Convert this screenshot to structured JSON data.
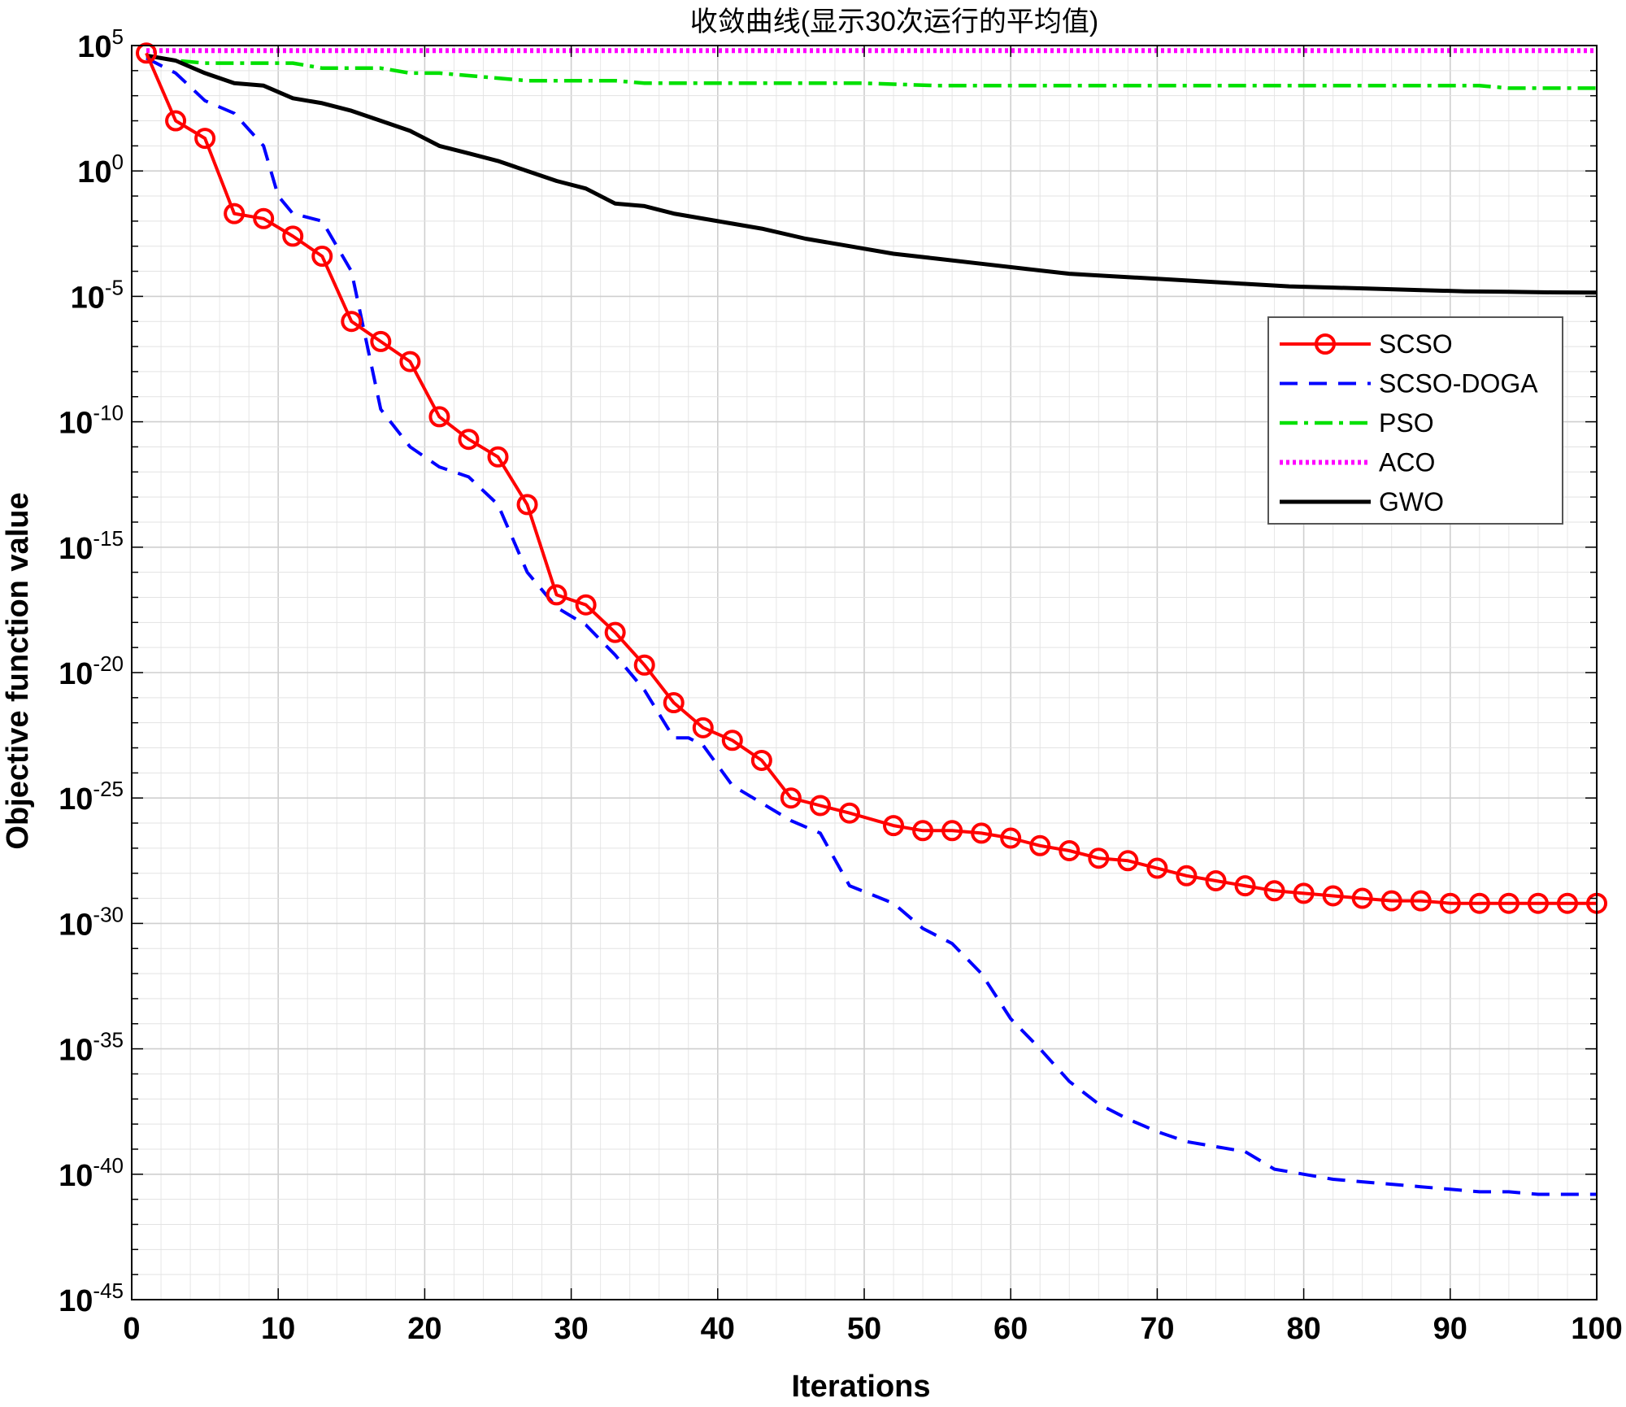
{
  "chart_data": {
    "type": "line",
    "title": "收敛曲线(显示30次运行的平均值)",
    "xlabel": "Iterations",
    "ylabel": "Objective function value",
    "xlim": [
      0,
      100
    ],
    "ylim_exponent": [
      -45,
      5
    ],
    "yscale": "log",
    "grid": true,
    "legend_position": "upper-right",
    "x_ticks": [
      "0",
      "10",
      "20",
      "30",
      "40",
      "50",
      "60",
      "70",
      "80",
      "90",
      "100"
    ],
    "y_tick_base": "10",
    "y_tick_exponents": [
      "5",
      "0",
      "-5",
      "-10",
      "-15",
      "-20",
      "-25",
      "-30",
      "-35",
      "-40",
      "-45"
    ],
    "series": [
      {
        "name": "SCSO",
        "color": "#ff0000",
        "style": "solid-circle",
        "x": [
          1,
          3,
          5,
          7,
          9,
          11,
          13,
          15,
          17,
          19,
          21,
          23,
          25,
          27,
          29,
          31,
          33,
          35,
          37,
          39,
          41,
          43,
          45,
          47,
          49,
          52,
          54,
          56,
          58,
          60,
          62,
          64,
          66,
          68,
          70,
          72,
          74,
          76,
          78,
          80,
          82,
          84,
          86,
          88,
          90,
          92,
          94,
          96,
          98,
          100
        ],
        "log10_y": [
          4.7,
          2.0,
          1.3,
          -1.7,
          -1.9,
          -2.6,
          -3.4,
          -6.0,
          -6.8,
          -7.6,
          -9.8,
          -10.7,
          -11.4,
          -13.3,
          -16.9,
          -17.3,
          -18.4,
          -19.7,
          -21.2,
          -22.2,
          -22.7,
          -23.5,
          -25.0,
          -25.3,
          -25.6,
          -26.1,
          -26.3,
          -26.3,
          -26.4,
          -26.6,
          -26.9,
          -27.1,
          -27.4,
          -27.5,
          -27.8,
          -28.1,
          -28.3,
          -28.5,
          -28.7,
          -28.8,
          -28.9,
          -29.0,
          -29.1,
          -29.1,
          -29.2,
          -29.2,
          -29.2,
          -29.2,
          -29.2,
          -29.2
        ]
      },
      {
        "name": "SCSO-DOGA",
        "color": "#0000ff",
        "style": "dashed",
        "x": [
          1,
          3,
          5,
          7,
          9,
          10,
          11,
          13,
          15,
          17,
          19,
          21,
          23,
          25,
          27,
          29,
          31,
          33,
          35,
          37,
          38,
          39,
          41,
          43,
          45,
          47,
          49,
          52,
          54,
          56,
          58,
          60,
          62,
          64,
          66,
          68,
          70,
          72,
          74,
          76,
          78,
          80,
          82,
          84,
          86,
          88,
          90,
          92,
          94,
          96,
          98,
          100
        ],
        "log10_y": [
          4.5,
          3.9,
          2.8,
          2.3,
          1.0,
          -1.0,
          -1.7,
          -2.0,
          -4.0,
          -9.5,
          -11.0,
          -11.8,
          -12.2,
          -13.3,
          -16.0,
          -17.4,
          -18.1,
          -19.3,
          -20.7,
          -22.6,
          -22.6,
          -22.9,
          -24.5,
          -25.2,
          -25.9,
          -26.4,
          -28.5,
          -29.2,
          -30.2,
          -30.8,
          -32.0,
          -33.8,
          -35.0,
          -36.3,
          -37.2,
          -37.8,
          -38.3,
          -38.7,
          -38.9,
          -39.1,
          -39.8,
          -40.0,
          -40.2,
          -40.3,
          -40.4,
          -40.5,
          -40.6,
          -40.7,
          -40.7,
          -40.8,
          -40.8,
          -40.8
        ]
      },
      {
        "name": "PSO",
        "color": "#00e000",
        "style": "dashdot",
        "x": [
          1,
          3,
          5,
          7,
          9,
          11,
          13,
          15,
          17,
          19,
          21,
          23,
          25,
          27,
          29,
          31,
          33,
          35,
          37,
          39,
          41,
          43,
          45,
          50,
          55,
          60,
          65,
          70,
          75,
          80,
          85,
          90,
          92,
          94,
          96,
          98,
          100
        ],
        "log10_y": [
          4.6,
          4.4,
          4.3,
          4.3,
          4.3,
          4.3,
          4.1,
          4.1,
          4.1,
          3.9,
          3.9,
          3.8,
          3.7,
          3.6,
          3.6,
          3.6,
          3.6,
          3.5,
          3.5,
          3.5,
          3.5,
          3.5,
          3.5,
          3.5,
          3.4,
          3.4,
          3.4,
          3.4,
          3.4,
          3.4,
          3.4,
          3.4,
          3.4,
          3.3,
          3.3,
          3.3,
          3.3
        ]
      },
      {
        "name": "ACO",
        "color": "#ff00ff",
        "style": "dotted",
        "x": [
          1,
          100
        ],
        "log10_y": [
          4.8,
          4.8
        ]
      },
      {
        "name": "GWO",
        "color": "#000000",
        "style": "solid",
        "x": [
          1,
          3,
          5,
          7,
          9,
          11,
          13,
          15,
          17,
          19,
          21,
          23,
          25,
          27,
          29,
          31,
          33,
          35,
          37,
          40,
          43,
          46,
          49,
          52,
          55,
          58,
          61,
          64,
          67,
          70,
          73,
          76,
          79,
          82,
          85,
          88,
          91,
          94,
          97,
          100
        ],
        "log10_y": [
          4.6,
          4.4,
          3.9,
          3.5,
          3.4,
          2.9,
          2.7,
          2.4,
          2.0,
          1.6,
          1.0,
          0.7,
          0.4,
          0.0,
          -0.4,
          -0.7,
          -1.3,
          -1.4,
          -1.7,
          -2.0,
          -2.3,
          -2.7,
          -3.0,
          -3.3,
          -3.5,
          -3.7,
          -3.9,
          -4.1,
          -4.2,
          -4.3,
          -4.4,
          -4.5,
          -4.6,
          -4.65,
          -4.7,
          -4.75,
          -4.8,
          -4.82,
          -4.84,
          -4.85
        ]
      }
    ]
  }
}
